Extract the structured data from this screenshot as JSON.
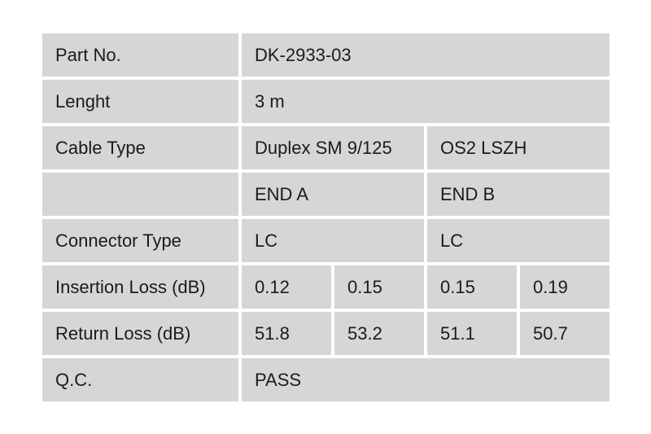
{
  "page": {
    "background_color": "#ffffff",
    "cell_background_color": "#d6d6d6",
    "text_color": "#1b1b1b",
    "gap_color": "#ffffff"
  },
  "spec_table": {
    "rows": [
      {
        "cells": [
          {
            "text": "Part No."
          },
          {
            "text": "DK-2933-03",
            "span": 4
          }
        ]
      },
      {
        "cells": [
          {
            "text": "Lenght"
          },
          {
            "text": "3 m",
            "span": 4
          }
        ]
      },
      {
        "cells": [
          {
            "text": "Cable Type"
          },
          {
            "text": "Duplex SM 9/125",
            "span": 2
          },
          {
            "text": "OS2 LSZH",
            "span": 2
          }
        ]
      },
      {
        "cells": [
          {
            "text": ""
          },
          {
            "text": "END A",
            "span": 2
          },
          {
            "text": "END B",
            "span": 2
          }
        ]
      },
      {
        "cells": [
          {
            "text": "Connector Type"
          },
          {
            "text": "LC",
            "span": 2
          },
          {
            "text": "LC",
            "span": 2
          }
        ]
      },
      {
        "cells": [
          {
            "text": "Insertion Loss (dB)"
          },
          {
            "text": "0.12"
          },
          {
            "text": "0.15"
          },
          {
            "text": "0.15"
          },
          {
            "text": "0.19"
          }
        ]
      },
      {
        "cells": [
          {
            "text": "Return Loss (dB)"
          },
          {
            "text": "51.8"
          },
          {
            "text": "53.2"
          },
          {
            "text": "51.1"
          },
          {
            "text": "50.7"
          }
        ]
      },
      {
        "cells": [
          {
            "text": "Q.C."
          },
          {
            "text": "PASS",
            "span": 4
          }
        ]
      }
    ]
  }
}
